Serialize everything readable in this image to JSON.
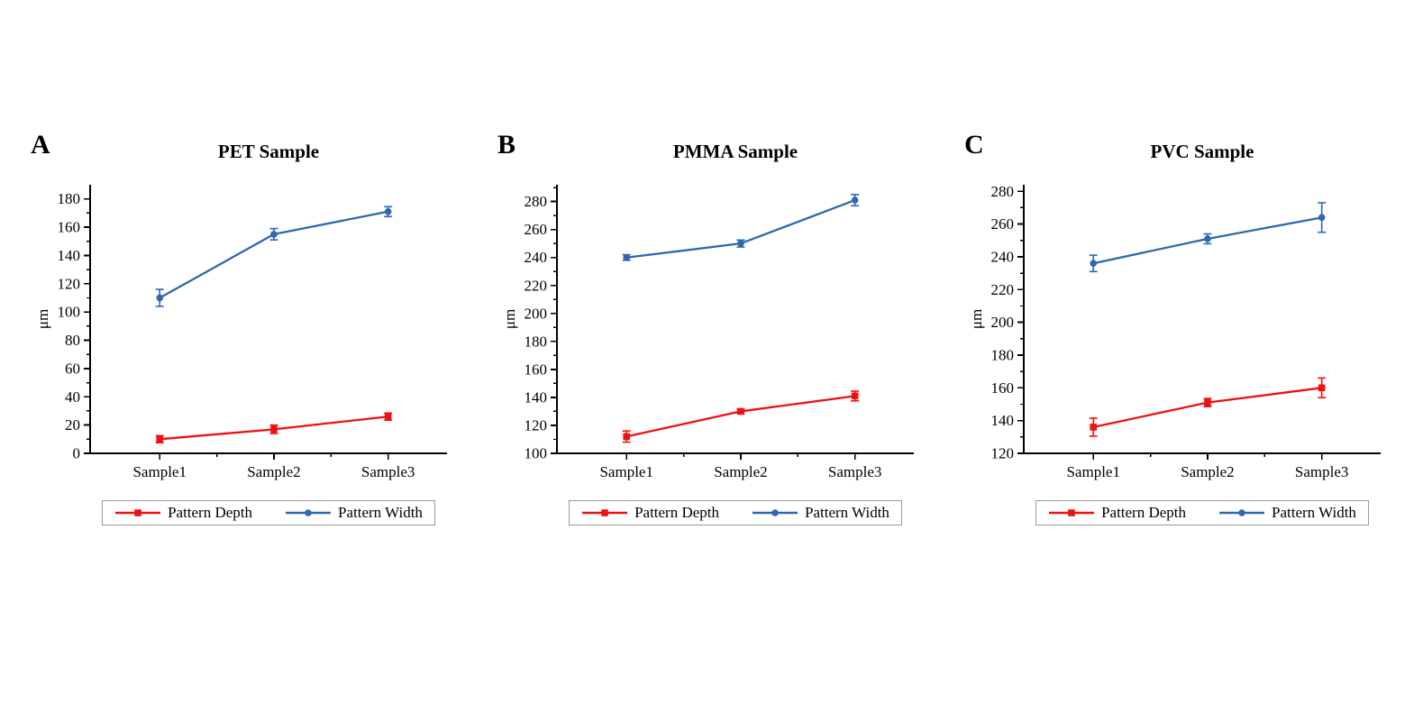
{
  "figure": {
    "background": "#ffffff",
    "axis_color": "#000000",
    "legend_border_color": "#9a9a9a"
  },
  "chart_data": [
    {
      "type": "line",
      "panel_label": "A",
      "title": "PET Sample",
      "categories": [
        "Sample1",
        "Sample2",
        "Sample3"
      ],
      "xlabel": "",
      "ylabel": "μm",
      "ylim": [
        0,
        190
      ],
      "yticks": [
        0,
        20,
        40,
        60,
        80,
        100,
        120,
        140,
        160,
        180
      ],
      "grid": false,
      "legend_position": "bottom",
      "series": [
        {
          "name": "Pattern Depth",
          "color": "#ee1111",
          "marker": "square",
          "values": [
            10,
            17,
            26
          ],
          "errors": [
            2.5,
            3,
            2.5
          ]
        },
        {
          "name": "Pattern Width",
          "color": "#2e68ae",
          "marker": "circle",
          "values": [
            110,
            155,
            171
          ],
          "errors": [
            6,
            4,
            3.5
          ]
        }
      ]
    },
    {
      "type": "line",
      "panel_label": "B",
      "title": "PMMA Sample",
      "categories": [
        "Sample1",
        "Sample2",
        "Sample3"
      ],
      "xlabel": "",
      "ylabel": "μm",
      "ylim": [
        100,
        292
      ],
      "yticks": [
        100,
        120,
        140,
        160,
        180,
        200,
        220,
        240,
        260,
        280
      ],
      "grid": false,
      "legend_position": "bottom",
      "series": [
        {
          "name": "Pattern Depth",
          "color": "#ee1111",
          "marker": "square",
          "values": [
            112,
            130,
            141
          ],
          "errors": [
            4,
            1.5,
            3.5
          ]
        },
        {
          "name": "Pattern Width",
          "color": "#2e68ae",
          "marker": "circle",
          "values": [
            240,
            250,
            281
          ],
          "errors": [
            2,
            2.5,
            4
          ]
        }
      ]
    },
    {
      "type": "line",
      "panel_label": "C",
      "title": "PVC Sample",
      "categories": [
        "Sample1",
        "Sample2",
        "Sample3"
      ],
      "xlabel": "",
      "ylabel": "μm",
      "ylim": [
        120,
        284
      ],
      "yticks": [
        120,
        140,
        160,
        180,
        200,
        220,
        240,
        260,
        280
      ],
      "grid": false,
      "legend_position": "bottom",
      "series": [
        {
          "name": "Pattern Depth",
          "color": "#ee1111",
          "marker": "square",
          "values": [
            136,
            151,
            160
          ],
          "errors": [
            5.5,
            2.5,
            6
          ]
        },
        {
          "name": "Pattern Width",
          "color": "#2e68ae",
          "marker": "circle",
          "values": [
            236,
            251,
            264
          ],
          "errors": [
            5,
            3,
            9
          ]
        }
      ]
    }
  ]
}
